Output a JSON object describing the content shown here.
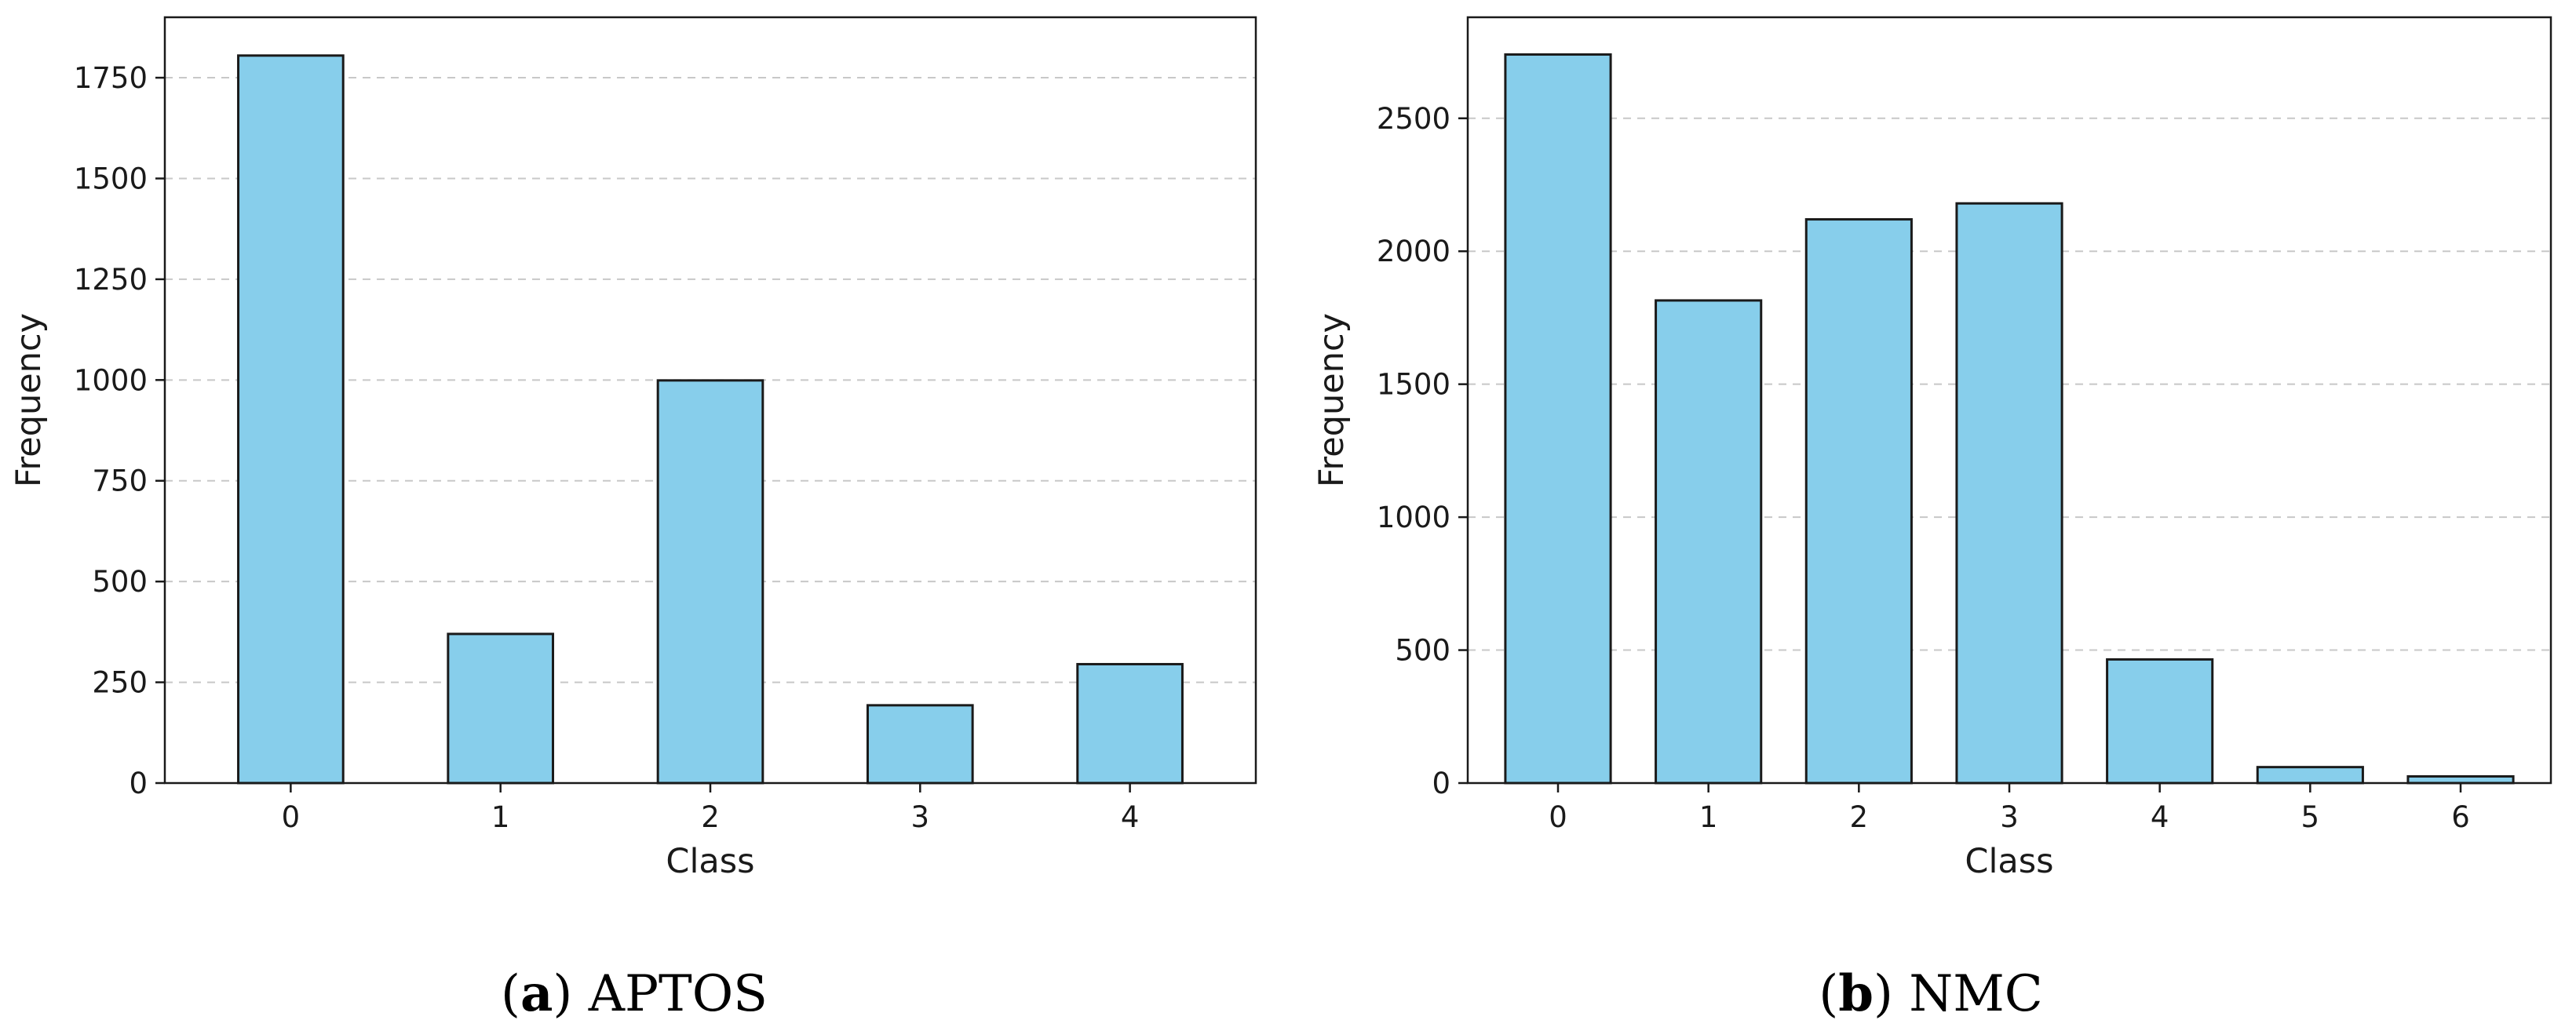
{
  "colors": {
    "bar_fill": "#87ceeb",
    "bar_edge": "#1a1a1a",
    "grid": "#c8c8c8",
    "axis": "#1a1a1a"
  },
  "chart_data": [
    {
      "type": "bar",
      "xlabel": "Class",
      "ylabel": "Frequency",
      "categories": [
        "0",
        "1",
        "2",
        "3",
        "4"
      ],
      "values": [
        1805,
        370,
        999,
        193,
        295
      ],
      "ylim": [
        0,
        1900
      ],
      "yticks": [
        0,
        250,
        500,
        750,
        1000,
        1250,
        1500,
        1750
      ],
      "grid": "y-dashed",
      "caption": {
        "letter": "a",
        "text": "APTOS"
      }
    },
    {
      "type": "bar",
      "xlabel": "Class",
      "ylabel": "Frequency",
      "categories": [
        "0",
        "1",
        "2",
        "3",
        "4",
        "5",
        "6"
      ],
      "values": [
        2740,
        1815,
        2120,
        2180,
        465,
        60,
        25
      ],
      "ylim": [
        0,
        2880
      ],
      "yticks": [
        0,
        500,
        1000,
        1500,
        2000,
        2500
      ],
      "grid": "y-dashed",
      "caption": {
        "letter": "b",
        "text": "NMC"
      }
    }
  ]
}
